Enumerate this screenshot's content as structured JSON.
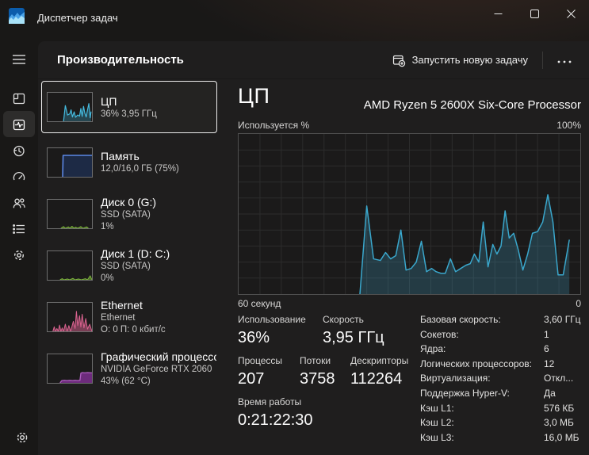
{
  "titlebar": {
    "title": "Диспетчер задач"
  },
  "header": {
    "title": "Производительность",
    "run_new_task_label": "Запустить новую задачу"
  },
  "icons": {
    "app": "task-manager-logo",
    "minimize": "minimize-dash",
    "maximize": "maximize-square",
    "close": "close-x",
    "menu": "hamburger",
    "processes": "window-panes",
    "performance": "pulse-square",
    "app_history": "clock-history",
    "startup_apps": "speedometer",
    "users": "two-people",
    "details": "bulleted-list",
    "services": "gear",
    "settings": "gear",
    "run_new_task": "window-plus-badge",
    "more": "ellipsis"
  },
  "sidebar": {
    "items": [
      "menu",
      "processes",
      "performance",
      "app-history",
      "startup-apps",
      "users",
      "details",
      "services",
      "settings"
    ],
    "selected": "performance"
  },
  "devices": [
    {
      "title": "ЦП",
      "line2": "36% 3,95 ГГц",
      "selected": true
    },
    {
      "title": "Память",
      "line2": "12,0/16,0 ГБ (75%)"
    },
    {
      "title": "Диск 0 (G:)",
      "line2": "SSD (SATA)",
      "line3": "1%"
    },
    {
      "title": "Диск 1 (D: C:)",
      "line2": "SSD (SATA)",
      "line3": "0%"
    },
    {
      "title": "Ethernet",
      "line2": "Ethernet",
      "line3": "О: 0 П: 0 кбит/с"
    },
    {
      "title": "Графический процессор 0",
      "line2": "NVIDIA GeForce RTX 2060",
      "line3": "43% (62 °C)"
    }
  ],
  "main": {
    "panel_title": "ЦП",
    "processor_name": "AMD Ryzen 5 2600X Six-Core Processor",
    "chart_labels": {
      "top_left": "Используется %",
      "top_right": "100%",
      "bottom_left": "60 секунд",
      "bottom_right": "0"
    },
    "stats": {
      "usage_label": "Использование",
      "usage_value": "36%",
      "speed_label": "Скорость",
      "speed_value": "3,95 ГГц",
      "processes_label": "Процессы",
      "processes_value": "207",
      "threads_label": "Потоки",
      "threads_value": "3758",
      "handles_label": "Дескрипторы",
      "handles_value": "112264",
      "uptime_label": "Время работы",
      "uptime_value": "0:21:22:30"
    },
    "specs": [
      {
        "label": "Базовая скорость:",
        "value": "3,60 ГГц"
      },
      {
        "label": "Сокетов:",
        "value": "1"
      },
      {
        "label": "Ядра:",
        "value": "6"
      },
      {
        "label": "Логических процессоров:",
        "value": "12"
      },
      {
        "label": "Виртуализация:",
        "value": "Откл..."
      },
      {
        "label": "Поддержка Hyper-V:",
        "value": "Да"
      },
      {
        "label": "Кэш L1:",
        "value": "576 КБ"
      },
      {
        "label": "Кэш L2:",
        "value": "3,0 МБ"
      },
      {
        "label": "Кэш L3:",
        "value": "16,0 МБ"
      }
    ]
  },
  "colors": {
    "cpu_teal": "#3aa7cc",
    "memory_blue": "#5b87e5",
    "disk_green": "#7db83a",
    "ethernet_pink": "#d9628f",
    "gpu_purple": "#b05ec1",
    "card_bg": "#1f1e1e",
    "chart_bg": "#1b1a1a"
  },
  "charts": {
    "main": {
      "type": "area",
      "x_axis": "seconds (60 → 0)",
      "ylim": [
        0,
        100
      ],
      "grid": {
        "cols": 16,
        "rows": 10,
        "color": "#2c2c2c"
      },
      "color": "#3aa7cc",
      "fill": "rgba(62,160,194,0.25)",
      "lw": 1.5,
      "points": [
        [
          0.355,
          0
        ],
        [
          0.375,
          55
        ],
        [
          0.395,
          22
        ],
        [
          0.415,
          21
        ],
        [
          0.43,
          26
        ],
        [
          0.445,
          22
        ],
        [
          0.46,
          24
        ],
        [
          0.475,
          40
        ],
        [
          0.49,
          15
        ],
        [
          0.505,
          16
        ],
        [
          0.52,
          20
        ],
        [
          0.535,
          33
        ],
        [
          0.55,
          14
        ],
        [
          0.565,
          16
        ],
        [
          0.578,
          14
        ],
        [
          0.592,
          13
        ],
        [
          0.605,
          13
        ],
        [
          0.62,
          22
        ],
        [
          0.635,
          14
        ],
        [
          0.65,
          16
        ],
        [
          0.665,
          18
        ],
        [
          0.678,
          19
        ],
        [
          0.69,
          25
        ],
        [
          0.703,
          20
        ],
        [
          0.716,
          45
        ],
        [
          0.73,
          17
        ],
        [
          0.744,
          31
        ],
        [
          0.756,
          25
        ],
        [
          0.768,
          30
        ],
        [
          0.78,
          52
        ],
        [
          0.792,
          35
        ],
        [
          0.805,
          38
        ],
        [
          0.818,
          28
        ],
        [
          0.832,
          15
        ],
        [
          0.846,
          25
        ],
        [
          0.86,
          38
        ],
        [
          0.875,
          39
        ],
        [
          0.89,
          45
        ],
        [
          0.905,
          62
        ],
        [
          0.92,
          45
        ],
        [
          0.935,
          12
        ],
        [
          0.95,
          12
        ],
        [
          0.968,
          34
        ]
      ]
    },
    "cpu_mini": {
      "type": "area",
      "color": "#45bade",
      "fill": "rgba(69,186,222,0.28)",
      "lw": 1.2,
      "points": [
        [
          0.36,
          0
        ],
        [
          0.4,
          55
        ],
        [
          0.45,
          22
        ],
        [
          0.5,
          26
        ],
        [
          0.53,
          40
        ],
        [
          0.56,
          15
        ],
        [
          0.6,
          33
        ],
        [
          0.63,
          14
        ],
        [
          0.68,
          22
        ],
        [
          0.72,
          18
        ],
        [
          0.75,
          45
        ],
        [
          0.78,
          17
        ],
        [
          0.81,
          52
        ],
        [
          0.84,
          28
        ],
        [
          0.87,
          15
        ],
        [
          0.9,
          40
        ],
        [
          0.93,
          62
        ],
        [
          0.96,
          12
        ],
        [
          0.98,
          34
        ]
      ]
    },
    "memory_mini": {
      "type": "area",
      "color": "#5b87e5",
      "fill": "#1d2a45",
      "lw": 1.6,
      "points": [
        [
          0.34,
          0
        ],
        [
          0.35,
          75
        ],
        [
          1,
          75
        ]
      ]
    },
    "disk0_mini": {
      "type": "area",
      "color": "#7db83a",
      "fill": "rgba(125,184,58,0.5)",
      "lw": 1,
      "points": [
        [
          0.3,
          0
        ],
        [
          0.36,
          6
        ],
        [
          0.4,
          0
        ],
        [
          0.47,
          5
        ],
        [
          0.5,
          0
        ],
        [
          0.55,
          7
        ],
        [
          0.6,
          0
        ],
        [
          0.63,
          4
        ],
        [
          0.68,
          0
        ],
        [
          0.75,
          6
        ],
        [
          0.8,
          0
        ],
        [
          0.88,
          5
        ],
        [
          0.92,
          0
        ]
      ]
    },
    "disk1_mini": {
      "type": "area",
      "color": "#7db83a",
      "fill": "rgba(125,184,58,0.5)",
      "lw": 1,
      "points": [
        [
          0.28,
          0
        ],
        [
          0.33,
          4
        ],
        [
          0.37,
          0
        ],
        [
          0.45,
          3
        ],
        [
          0.5,
          0
        ],
        [
          0.57,
          5
        ],
        [
          0.62,
          0
        ],
        [
          0.7,
          3
        ],
        [
          0.76,
          0
        ],
        [
          0.85,
          4
        ],
        [
          0.9,
          0
        ],
        [
          0.96,
          14
        ],
        [
          1,
          0
        ]
      ]
    },
    "ethernet_mini": {
      "type": "area",
      "color": "#d9628f",
      "fill": "rgba(217,98,143,0.5)",
      "lw": 1,
      "points": [
        [
          0.12,
          0
        ],
        [
          0.15,
          16
        ],
        [
          0.18,
          0
        ],
        [
          0.21,
          10
        ],
        [
          0.24,
          0
        ],
        [
          0.27,
          22
        ],
        [
          0.3,
          0
        ],
        [
          0.33,
          12
        ],
        [
          0.36,
          0
        ],
        [
          0.4,
          25
        ],
        [
          0.44,
          0
        ],
        [
          0.48,
          20
        ],
        [
          0.52,
          0
        ],
        [
          0.58,
          35
        ],
        [
          0.62,
          10
        ],
        [
          0.65,
          70
        ],
        [
          0.68,
          20
        ],
        [
          0.72,
          55
        ],
        [
          0.75,
          15
        ],
        [
          0.78,
          60
        ],
        [
          0.82,
          12
        ],
        [
          0.86,
          45
        ],
        [
          0.9,
          8
        ],
        [
          0.95,
          25
        ],
        [
          1,
          0
        ]
      ]
    },
    "gpu_mini": {
      "type": "area",
      "color": "#b05ec1",
      "fill": "rgba(123,47,142,0.85)",
      "lw": 1.3,
      "points": [
        [
          0.28,
          0
        ],
        [
          0.32,
          8
        ],
        [
          0.38,
          9
        ],
        [
          0.44,
          8
        ],
        [
          0.5,
          9
        ],
        [
          0.56,
          8
        ],
        [
          0.62,
          9
        ],
        [
          0.68,
          8
        ],
        [
          0.73,
          9
        ],
        [
          0.75,
          34
        ],
        [
          0.78,
          36
        ],
        [
          0.84,
          35
        ],
        [
          0.9,
          36
        ],
        [
          1,
          35
        ]
      ]
    }
  }
}
